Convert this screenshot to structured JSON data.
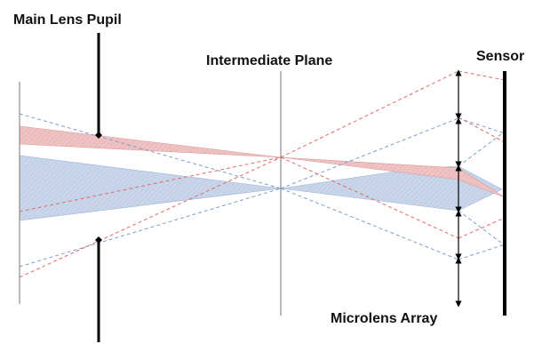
{
  "labels": {
    "main_lens_pupil": "Main Lens Pupil",
    "intermediate_plane": "Intermediate Plane",
    "sensor": "Sensor",
    "microlens_array": "Microlens Array"
  },
  "colors": {
    "background": "#ffffff",
    "red_bundle_fill": "#efc3c3",
    "red_rays": "#e06a6a",
    "blue_bundle_fill": "#c9d6ea",
    "blue_rays": "#7f9bcb",
    "planes": "#8c8c8c",
    "black": "#000000"
  }
}
